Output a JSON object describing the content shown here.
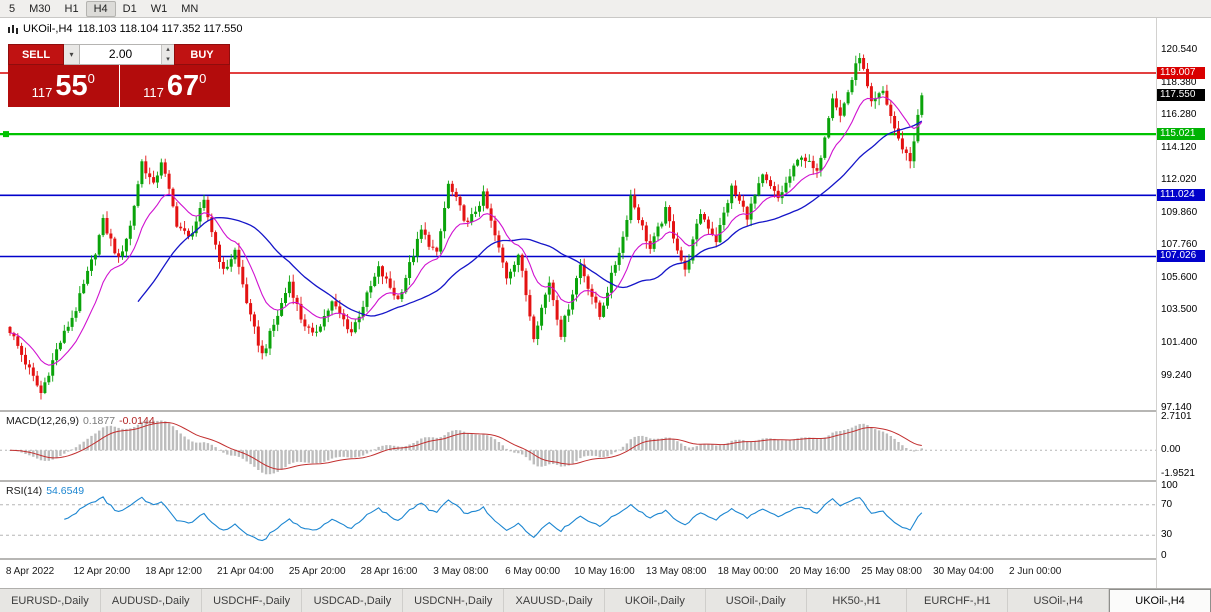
{
  "toolbar": {
    "items": [
      "5",
      "M30",
      "H1",
      "H4",
      "D1",
      "W1",
      "MN"
    ],
    "active": "H4"
  },
  "chart": {
    "symbol": "UKOil-,H4",
    "ohlc": "118.103 118.104 117.352 117.550"
  },
  "trade_panel": {
    "sell_label": "SELL",
    "buy_label": "BUY",
    "volume": "2.00",
    "sell_price": {
      "prefix": "117",
      "big": "55",
      "sup": "0"
    },
    "buy_price": {
      "prefix": "117",
      "big": "67",
      "sup": "0"
    }
  },
  "price_axis": {
    "plain": [
      "120.540",
      "118.380",
      "116.280",
      "114.120",
      "112.020",
      "109.860",
      "107.760",
      "105.600",
      "103.500",
      "101.400",
      "99.240",
      "97.140"
    ],
    "badges": [
      {
        "value": "119.007",
        "bg": "#d90000"
      },
      {
        "value": "117.550",
        "bg": "#000000"
      },
      {
        "value": "115.021",
        "bg": "#00b303"
      },
      {
        "value": "111.024",
        "bg": "#0101cb"
      },
      {
        "value": "107.026",
        "bg": "#0101cb"
      }
    ]
  },
  "hlines": [
    {
      "price": 119.007,
      "color": "#d90000",
      "width": 1.6
    },
    {
      "price": 115.021,
      "color": "#00c300",
      "width": 2.2,
      "handle": true
    },
    {
      "price": 111.024,
      "color": "#0101cb",
      "width": 1.6
    },
    {
      "price": 107.026,
      "color": "#0101cb",
      "width": 1.6
    }
  ],
  "macd": {
    "name": "MACD(12,26,9)",
    "value_main": "0.1877",
    "value_signal": "-0.0144",
    "axis": [
      "2.7101",
      "0.00",
      "-1.9521"
    ]
  },
  "rsi": {
    "name": "RSI(14)",
    "value": "54.6549",
    "axis": [
      "100",
      "70",
      "30",
      "0"
    ],
    "levels": [
      70,
      30
    ]
  },
  "time_axis": {
    "labels": [
      "8 Apr 2022",
      "12 Apr 20:00",
      "18 Apr 12:00",
      "21 Apr 04:00",
      "25 Apr 20:00",
      "28 Apr 16:00",
      "3 May 08:00",
      "6 May 00:00",
      "10 May 16:00",
      "13 May 08:00",
      "18 May 00:00",
      "20 May 16:00",
      "25 May 08:00",
      "30 May 04:00",
      "2 Jun 00:00"
    ]
  },
  "tabs": {
    "items": [
      "EURUSD-,Daily",
      "AUDUSD-,Daily",
      "USDCHF-,Daily",
      "USDCAD-,Daily",
      "USDCNH-,Daily",
      "XAUUSD-,Daily",
      "UKOil-,Daily",
      "USOil-,Daily",
      "HK50-,H1",
      "EURCHF-,H1",
      "USOil-,H4",
      "UKOil-,H4"
    ],
    "active": "UKOil-,H4"
  },
  "colors": {
    "candle_up": "#0aa30a",
    "candle_down": "#e31212",
    "ma_fast": "#d012d0",
    "ma_slow": "#1515c8",
    "macd_hist": "#bdbdbd",
    "macd_signal": "#c22f2f",
    "rsi_line": "#1c86d1",
    "level_dash": "#b6b6b6"
  },
  "chart_data": {
    "type": "candlestick",
    "symbol": "UKOil-",
    "timeframe": "H4",
    "last_close": 117.55,
    "candle_count": 236,
    "candle_spacing": 3.88,
    "price_range": [
      97.0,
      122.6
    ],
    "indicators": {
      "macd": [
        12,
        26,
        9
      ],
      "rsi": 14,
      "ma_fast_ema": 13,
      "ma_slow_sma": 34
    },
    "macd_range": [
      -2.4,
      3.1
    ],
    "rsi_range": [
      0,
      100
    ],
    "waypoints": [
      [
        0,
        102.2
      ],
      [
        4,
        100.1
      ],
      [
        8,
        98.1
      ],
      [
        12,
        100.9
      ],
      [
        17,
        103.6
      ],
      [
        22,
        107.4
      ],
      [
        24,
        109.3
      ],
      [
        28,
        106.8
      ],
      [
        31,
        109.0
      ],
      [
        34,
        113.2
      ],
      [
        37,
        111.6
      ],
      [
        39,
        113.3
      ],
      [
        43,
        109.2
      ],
      [
        46,
        108.2
      ],
      [
        50,
        110.5
      ],
      [
        55,
        106.0
      ],
      [
        58,
        107.4
      ],
      [
        62,
        103.0
      ],
      [
        65,
        100.6
      ],
      [
        69,
        103.2
      ],
      [
        72,
        105.4
      ],
      [
        75,
        103.0
      ],
      [
        78,
        101.8
      ],
      [
        83,
        104.0
      ],
      [
        88,
        102.1
      ],
      [
        95,
        106.2
      ],
      [
        100,
        104.2
      ],
      [
        106,
        108.7
      ],
      [
        110,
        107.1
      ],
      [
        113,
        111.7
      ],
      [
        118,
        109.1
      ],
      [
        122,
        111.0
      ],
      [
        128,
        105.7
      ],
      [
        131,
        107.2
      ],
      [
        135,
        101.9
      ],
      [
        139,
        105.4
      ],
      [
        142,
        102.0
      ],
      [
        147,
        106.5
      ],
      [
        152,
        103.1
      ],
      [
        158,
        108.3
      ],
      [
        160,
        111.0
      ],
      [
        165,
        107.5
      ],
      [
        169,
        110.0
      ],
      [
        174,
        106.0
      ],
      [
        178,
        109.9
      ],
      [
        182,
        108.1
      ],
      [
        186,
        111.5
      ],
      [
        190,
        109.7
      ],
      [
        194,
        112.2
      ],
      [
        198,
        110.8
      ],
      [
        204,
        113.7
      ],
      [
        208,
        112.4
      ],
      [
        212,
        117.6
      ],
      [
        214,
        116.2
      ],
      [
        219,
        120.2
      ],
      [
        222,
        116.9
      ],
      [
        225,
        117.8
      ],
      [
        229,
        114.6
      ],
      [
        232,
        113.3
      ],
      [
        235,
        117.5
      ]
    ]
  }
}
